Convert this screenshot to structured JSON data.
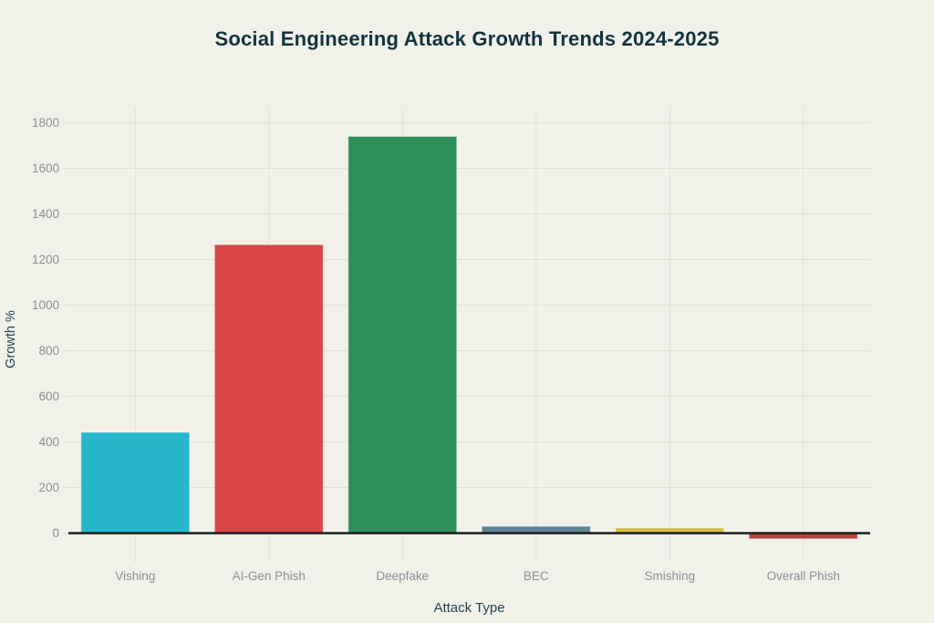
{
  "chart_data": {
    "type": "bar",
    "title": "Social Engineering Attack Growth Trends 2024-2025",
    "xlabel": "Attack Type",
    "ylabel": "Growth %",
    "categories": [
      "Vishing",
      "AI-Gen Phish",
      "Deepfake",
      "BEC",
      "Smishing",
      "Overall Phish"
    ],
    "values": [
      442,
      1265,
      1740,
      30,
      22,
      -25
    ],
    "bar_colors": [
      "#26b6c9",
      "#d84744",
      "#2e8f58",
      "#5d8596",
      "#d5ba3d",
      "#b3453e"
    ],
    "yticks": [
      0,
      200,
      400,
      600,
      800,
      1000,
      1200,
      1400,
      1600,
      1800
    ],
    "ylim": [
      -130,
      1866
    ],
    "grid": true,
    "legend_position": "none",
    "colors": {
      "background": "#f1f1ea",
      "grid": "#e2dfd6",
      "axis_line": "#1c1c1c",
      "tick_label": "#8d8d8d",
      "category_label": "#8b9096",
      "axis_title": "#28434f",
      "chart_title": "#12343e",
      "bar_edge": "rgba(255,255,255,0.45)"
    }
  }
}
